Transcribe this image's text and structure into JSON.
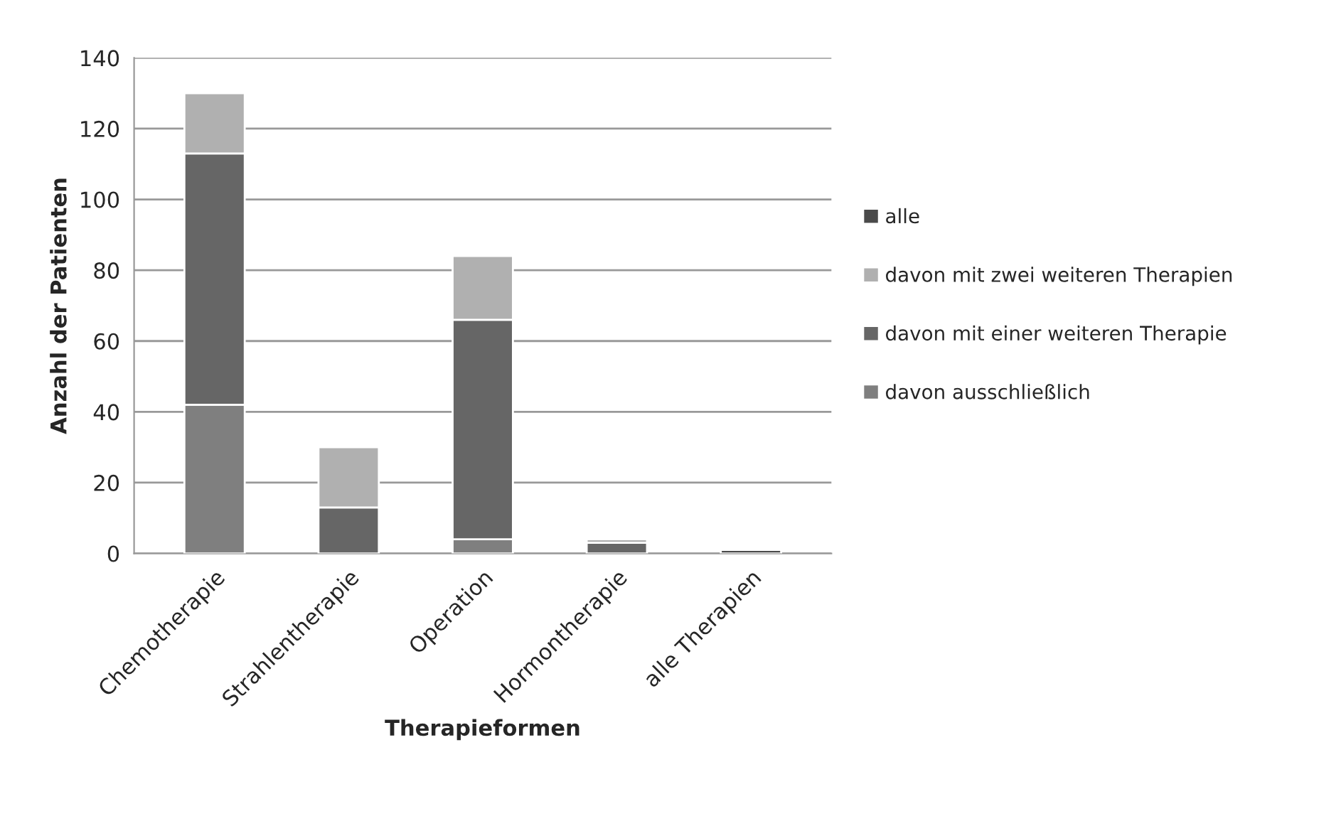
{
  "chart_data": {
    "type": "bar",
    "stacked": true,
    "xlabel": "Therapieformen",
    "ylabel": "Anzahl der Patienten",
    "categories": [
      "Chemotherapie",
      "Strahlentherapie",
      "Operation",
      "Hormontherapie",
      "alle Therapien"
    ],
    "series": [
      {
        "name": "davon ausschließlich",
        "color": "#7f7f7f",
        "values": [
          42,
          null,
          4,
          null,
          null
        ]
      },
      {
        "name": "davon mit einer weiteren Therapie",
        "color": "#666666",
        "values": [
          71,
          13,
          62,
          3,
          null
        ]
      },
      {
        "name": "davon mit zwei weiteren Therapien",
        "color": "#b0b0b0",
        "values": [
          17,
          17,
          18,
          1,
          null
        ]
      },
      {
        "name": "alle",
        "color": "#4a4a4a",
        "values": [
          null,
          null,
          null,
          null,
          1
        ]
      }
    ],
    "ylim": [
      0,
      140
    ],
    "yticks": [
      0,
      20,
      40,
      60,
      80,
      100,
      120,
      140
    ],
    "grid": "y",
    "legend": "right"
  }
}
